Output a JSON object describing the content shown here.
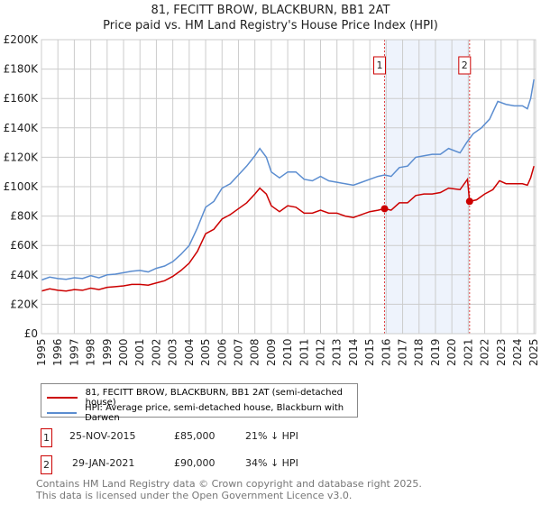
{
  "chart_data": {
    "type": "line",
    "title": "81, FECITT BROW, BLACKBURN, BB1 2AT",
    "subtitle": "Price paid vs. HM Land Registry's House Price Index (HPI)",
    "xlim": [
      1995,
      2025.1
    ],
    "ylim": [
      0,
      200000
    ],
    "yticks": [
      {
        "v": 0,
        "l": "£0"
      },
      {
        "v": 20000,
        "l": "£20K"
      },
      {
        "v": 40000,
        "l": "£40K"
      },
      {
        "v": 60000,
        "l": "£60K"
      },
      {
        "v": 80000,
        "l": "£80K"
      },
      {
        "v": 100000,
        "l": "£100K"
      },
      {
        "v": 120000,
        "l": "£120K"
      },
      {
        "v": 140000,
        "l": "£140K"
      },
      {
        "v": 160000,
        "l": "£160K"
      },
      {
        "v": 180000,
        "l": "£180K"
      },
      {
        "v": 200000,
        "l": "£200K"
      }
    ],
    "xticks": [
      "1995",
      "1996",
      "1997",
      "1998",
      "1999",
      "2000",
      "2001",
      "2002",
      "2003",
      "2004",
      "2005",
      "2006",
      "2007",
      "2008",
      "2009",
      "2010",
      "2011",
      "2012",
      "2013",
      "2014",
      "2015",
      "2016",
      "2017",
      "2018",
      "2019",
      "2020",
      "2021",
      "2022",
      "2023",
      "2024",
      "2025"
    ],
    "shade": [
      2015.9,
      2021.08
    ],
    "series": [
      {
        "name": "HPI: Average price, semi-detached house, Blackburn with Darwen",
        "color": "#5b8dd0",
        "points": [
          [
            1995,
            36500
          ],
          [
            1995.5,
            38500
          ],
          [
            1996,
            37500
          ],
          [
            1996.5,
            37000
          ],
          [
            1997,
            38000
          ],
          [
            1997.5,
            37500
          ],
          [
            1998,
            39500
          ],
          [
            1998.5,
            38000
          ],
          [
            1999,
            40000
          ],
          [
            1999.5,
            40500
          ],
          [
            2000,
            41500
          ],
          [
            2000.5,
            42500
          ],
          [
            2001,
            43000
          ],
          [
            2001.5,
            42000
          ],
          [
            2002,
            44500
          ],
          [
            2002.5,
            46000
          ],
          [
            2003,
            49000
          ],
          [
            2003.5,
            54000
          ],
          [
            2004,
            60000
          ],
          [
            2004.5,
            72000
          ],
          [
            2005,
            86000
          ],
          [
            2005.5,
            90000
          ],
          [
            2006,
            99000
          ],
          [
            2006.5,
            102000
          ],
          [
            2007,
            108000
          ],
          [
            2007.5,
            114000
          ],
          [
            2008,
            121000
          ],
          [
            2008.3,
            126000
          ],
          [
            2008.7,
            120000
          ],
          [
            2009,
            110000
          ],
          [
            2009.5,
            106000
          ],
          [
            2010,
            110000
          ],
          [
            2010.5,
            110000
          ],
          [
            2011,
            105000
          ],
          [
            2011.5,
            104000
          ],
          [
            2012,
            107000
          ],
          [
            2012.5,
            104000
          ],
          [
            2013,
            103000
          ],
          [
            2013.5,
            102000
          ],
          [
            2014,
            101000
          ],
          [
            2014.5,
            103000
          ],
          [
            2015,
            105000
          ],
          [
            2015.5,
            107000
          ],
          [
            2015.9,
            108000
          ],
          [
            2016.3,
            107000
          ],
          [
            2016.8,
            113000
          ],
          [
            2017.3,
            114000
          ],
          [
            2017.8,
            120000
          ],
          [
            2018.3,
            121000
          ],
          [
            2018.8,
            122000
          ],
          [
            2019.3,
            122000
          ],
          [
            2019.8,
            126000
          ],
          [
            2020.5,
            123000
          ],
          [
            2020.9,
            130000
          ],
          [
            2021.3,
            136000
          ],
          [
            2021.8,
            140000
          ],
          [
            2022.3,
            146000
          ],
          [
            2022.8,
            158000
          ],
          [
            2023.3,
            156000
          ],
          [
            2023.8,
            155000
          ],
          [
            2024.3,
            155000
          ],
          [
            2024.6,
            153000
          ],
          [
            2024.8,
            160000
          ],
          [
            2025,
            173000
          ]
        ]
      },
      {
        "name": "81, FECITT BROW, BLACKBURN, BB1 2AT (semi-detached house)",
        "color": "#cc0000",
        "points": [
          [
            1995,
            29000
          ],
          [
            1995.5,
            30500
          ],
          [
            1996,
            29500
          ],
          [
            1996.5,
            29000
          ],
          [
            1997,
            30000
          ],
          [
            1997.5,
            29500
          ],
          [
            1998,
            31000
          ],
          [
            1998.5,
            30000
          ],
          [
            1999,
            31500
          ],
          [
            1999.5,
            32000
          ],
          [
            2000,
            32500
          ],
          [
            2000.5,
            33500
          ],
          [
            2001,
            33500
          ],
          [
            2001.5,
            33000
          ],
          [
            2002,
            34500
          ],
          [
            2002.5,
            36000
          ],
          [
            2003,
            39000
          ],
          [
            2003.5,
            43000
          ],
          [
            2004,
            48000
          ],
          [
            2004.5,
            56000
          ],
          [
            2005,
            68000
          ],
          [
            2005.5,
            71000
          ],
          [
            2006,
            78000
          ],
          [
            2006.5,
            81000
          ],
          [
            2007,
            85000
          ],
          [
            2007.5,
            89000
          ],
          [
            2008,
            95000
          ],
          [
            2008.3,
            99000
          ],
          [
            2008.7,
            95000
          ],
          [
            2009,
            87000
          ],
          [
            2009.5,
            83000
          ],
          [
            2010,
            87000
          ],
          [
            2010.5,
            86000
          ],
          [
            2011,
            82000
          ],
          [
            2011.5,
            82000
          ],
          [
            2012,
            84000
          ],
          [
            2012.5,
            82000
          ],
          [
            2013,
            82000
          ],
          [
            2013.5,
            80000
          ],
          [
            2014,
            79000
          ],
          [
            2014.5,
            81000
          ],
          [
            2015,
            83000
          ],
          [
            2015.5,
            84000
          ],
          [
            2015.9,
            85000
          ],
          [
            2016.3,
            84000
          ],
          [
            2016.8,
            89000
          ],
          [
            2017.3,
            89000
          ],
          [
            2017.8,
            94000
          ],
          [
            2018.3,
            95000
          ],
          [
            2018.8,
            95000
          ],
          [
            2019.3,
            96000
          ],
          [
            2019.8,
            99000
          ],
          [
            2020.5,
            98000
          ],
          [
            2020.95,
            105000
          ],
          [
            2021.08,
            90000
          ],
          [
            2021.5,
            91000
          ],
          [
            2022,
            95000
          ],
          [
            2022.5,
            98000
          ],
          [
            2022.9,
            104000
          ],
          [
            2023.3,
            102000
          ],
          [
            2023.8,
            102000
          ],
          [
            2024.3,
            102000
          ],
          [
            2024.6,
            101000
          ],
          [
            2024.8,
            106000
          ],
          [
            2025,
            114000
          ]
        ]
      }
    ],
    "markers": [
      {
        "label": "1",
        "x": 2015.9,
        "y": 85000
      },
      {
        "label": "2",
        "x": 2021.08,
        "y": 90000
      }
    ]
  },
  "legend": {
    "red": "81, FECITT BROW, BLACKBURN, BB1 2AT (semi-detached house)",
    "blue": "HPI: Average price, semi-detached house, Blackburn with Darwen"
  },
  "transactions": [
    {
      "num": "1",
      "date": "25-NOV-2015",
      "price": "£85,000",
      "diff": "21% ↓ HPI"
    },
    {
      "num": "2",
      "date": "29-JAN-2021",
      "price": "£90,000",
      "diff": "34% ↓ HPI"
    }
  ],
  "footer": {
    "line1": "Contains HM Land Registry data © Crown copyright and database right 2025.",
    "line2": "This data is licensed under the Open Government Licence v3.0."
  }
}
